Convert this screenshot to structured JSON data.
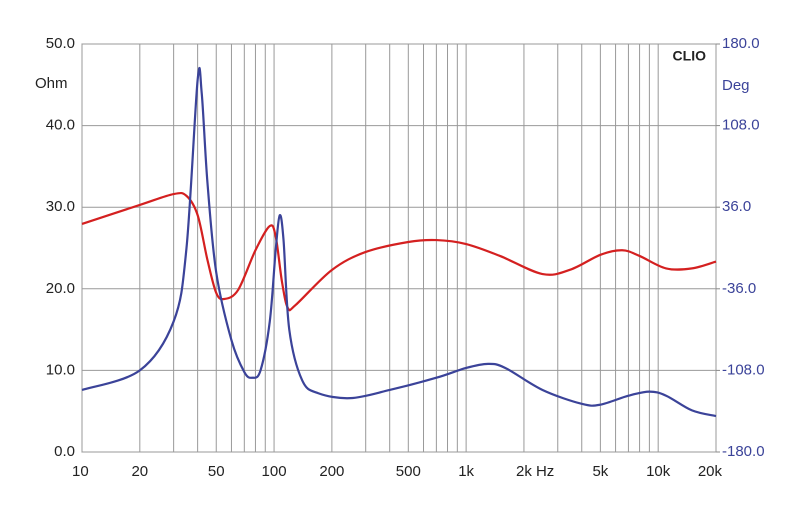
{
  "chart_data": {
    "type": "line",
    "brand": "CLIO",
    "y_unit": "Ohm",
    "y2_unit": "Deg",
    "x_unit": "Hz",
    "xscale": "log",
    "grid": true,
    "xlim": [
      10,
      20000
    ],
    "xticks": [
      {
        "value": 10,
        "label": "10"
      },
      {
        "value": 20,
        "label": "20"
      },
      {
        "value": 50,
        "label": "50"
      },
      {
        "value": 100,
        "label": "100"
      },
      {
        "value": 200,
        "label": "200"
      },
      {
        "value": 500,
        "label": "500"
      },
      {
        "value": 1000,
        "label": "1k"
      },
      {
        "value": 2000,
        "label": "2k"
      },
      {
        "value": 5000,
        "label": "5k"
      },
      {
        "value": 10000,
        "label": "10k"
      },
      {
        "value": 20000,
        "label": "20k"
      }
    ],
    "xminor": [
      30,
      40,
      60,
      70,
      80,
      90,
      300,
      400,
      600,
      700,
      800,
      900,
      3000,
      4000,
      6000,
      7000,
      8000,
      9000
    ],
    "ylim": [
      0,
      50
    ],
    "yticks": [
      {
        "value": 0,
        "label": "0.0"
      },
      {
        "value": 10,
        "label": "10.0"
      },
      {
        "value": 20,
        "label": "20.0"
      },
      {
        "value": 30,
        "label": "30.0"
      },
      {
        "value": 40,
        "label": "40.0"
      },
      {
        "value": 50,
        "label": "50.0"
      }
    ],
    "y2lim": [
      -180,
      180
    ],
    "y2ticks": [
      {
        "value": -180,
        "label": "-180.0"
      },
      {
        "value": -108,
        "label": "-108.0"
      },
      {
        "value": -36,
        "label": "-36.0"
      },
      {
        "value": 36,
        "label": "36.0"
      },
      {
        "value": 108,
        "label": "108.0"
      },
      {
        "value": 180,
        "label": "180.0"
      }
    ],
    "series": [
      {
        "color": "#3b4399",
        "axis": "y",
        "x": [
          10,
          20,
          30,
          35,
          40,
          42,
          45,
          50,
          60,
          70,
          77,
          85,
          95,
          102,
          107,
          112,
          120,
          140,
          170,
          250,
          400,
          700,
          1000,
          1300,
          1600,
          2500,
          4000,
          5000,
          7000,
          9000,
          11000,
          15000,
          20000
        ],
        "values": [
          7.6,
          10,
          16,
          25,
          45.6,
          44,
          33,
          22,
          13.7,
          9.8,
          9.1,
          10,
          16,
          24.8,
          29,
          26,
          15,
          8.8,
          7.2,
          6.6,
          7.6,
          9.1,
          10.3,
          10.8,
          10.3,
          7.6,
          5.9,
          5.8,
          6.9,
          7.4,
          6.9,
          5.1,
          4.4
        ]
      },
      {
        "color": "#d42020",
        "axis": "y2",
        "x": [
          10,
          20,
          30,
          35,
          40,
          45,
          50,
          55,
          65,
          80,
          95,
          102,
          110,
          118,
          130,
          200,
          300,
          500,
          700,
          1000,
          1500,
          2500,
          3500,
          5000,
          6500,
          8000,
          11000,
          15000,
          20000
        ],
        "values": [
          21.2,
          38,
          47.6,
          46,
          29,
          -10.6,
          -39.7,
          -45,
          -37,
          -2,
          19.4,
          10,
          -30,
          -53,
          -50,
          -19.4,
          -3.5,
          5.3,
          7,
          3.5,
          -7,
          -23,
          -19,
          -6,
          -2,
          -7,
          -18,
          -18,
          -12
        ]
      }
    ]
  }
}
